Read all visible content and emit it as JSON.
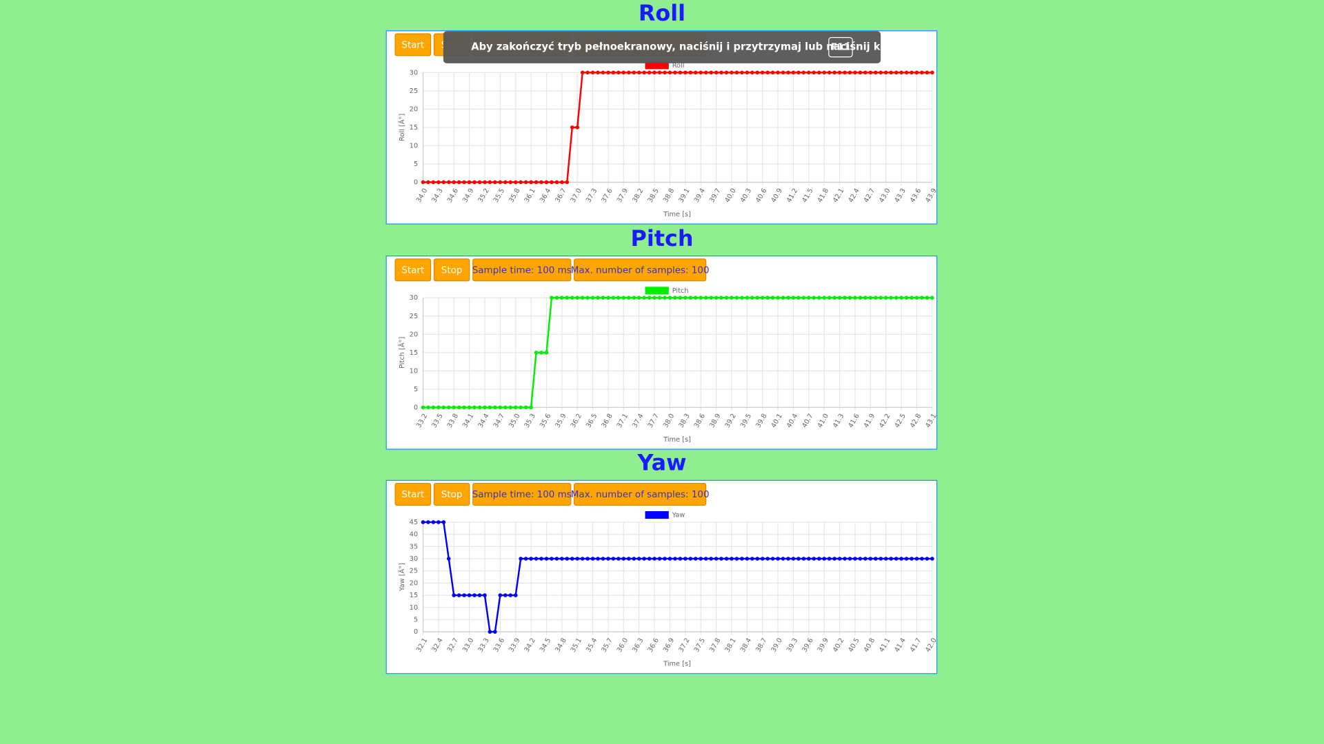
{
  "overlay": {
    "message": "Aby zakończyć tryb pełnoekranowy, naciśnij i przytrzymaj lub naciśnij klawisz",
    "key": "F11"
  },
  "panels": [
    {
      "buttons": [
        "Start",
        "Stop"
      ]
    },
    {
      "buttons": [
        "Start",
        "Stop",
        "Sample time: 100 ms",
        "Max. number of samples: 100"
      ]
    },
    {
      "buttons": [
        "Start",
        "Stop",
        "Sample time: 100 ms",
        "Max. number of samples: 100"
      ]
    }
  ],
  "chart_data": [
    {
      "type": "line",
      "title": "Roll",
      "y_label": "Roll [Â°]",
      "x_label": "Time [s]",
      "ylim": [
        0,
        30
      ],
      "yticks": [
        0,
        5,
        10,
        15,
        20,
        25,
        30
      ],
      "grid": true,
      "categories": [
        "34.0",
        null,
        null,
        "34.3",
        null,
        null,
        "34.6",
        null,
        null,
        "34.9",
        null,
        null,
        "35.2",
        null,
        null,
        "35.5",
        null,
        null,
        "35.8",
        null,
        null,
        "36.1",
        null,
        null,
        "36.4",
        null,
        null,
        "36.7",
        null,
        null,
        "37.0",
        null,
        null,
        "37.3",
        null,
        null,
        "37.6",
        null,
        null,
        "37.9",
        null,
        null,
        "38.2",
        null,
        null,
        "38.5",
        null,
        null,
        "38.8",
        null,
        null,
        "39.1",
        null,
        null,
        "39.4",
        null,
        null,
        "39.7",
        null,
        null,
        "40.0",
        null,
        null,
        "40.3",
        null,
        null,
        "40.6",
        null,
        null,
        "40.9",
        null,
        null,
        "41.2",
        null,
        null,
        "41.5",
        null,
        null,
        "41.8",
        null,
        null,
        "42.1",
        null,
        null,
        "42.4",
        null,
        null,
        "42.7",
        null,
        null,
        "43.0",
        null,
        null,
        "43.3",
        null,
        null,
        "43.6",
        null,
        null,
        "43.9"
      ],
      "series": [
        {
          "name": "Roll",
          "color": "#ff0000",
          "values": [
            0,
            0,
            0,
            0,
            0,
            0,
            0,
            0,
            0,
            0,
            0,
            0,
            0,
            0,
            0,
            0,
            0,
            0,
            0,
            0,
            0,
            0,
            0,
            0,
            0,
            0,
            0,
            0,
            0,
            15,
            15,
            30,
            30,
            30,
            30,
            30,
            30,
            30,
            30,
            30,
            30,
            30,
            30,
            30,
            30,
            30,
            30,
            30,
            30,
            30,
            30,
            30,
            30,
            30,
            30,
            30,
            30,
            30,
            30,
            30,
            30,
            30,
            30,
            30,
            30,
            30,
            30,
            30,
            30,
            30,
            30,
            30,
            30,
            30,
            30,
            30,
            30,
            30,
            30,
            30,
            30,
            30,
            30,
            30,
            30,
            30,
            30,
            30,
            30,
            30,
            30,
            30,
            30,
            30,
            30,
            30,
            30,
            30,
            30,
            30
          ]
        }
      ]
    },
    {
      "type": "line",
      "title": "Pitch",
      "y_label": "Pitch [Â°]",
      "x_label": "Time [s]",
      "ylim": [
        0,
        30
      ],
      "yticks": [
        0,
        5,
        10,
        15,
        20,
        25,
        30
      ],
      "grid": true,
      "categories": [
        "33.2",
        null,
        null,
        "33.5",
        null,
        null,
        "33.8",
        null,
        null,
        "34.1",
        null,
        null,
        "34.4",
        null,
        null,
        "34.7",
        null,
        null,
        "35.0",
        null,
        null,
        "35.3",
        null,
        null,
        "35.6",
        null,
        null,
        "35.9",
        null,
        null,
        "36.2",
        null,
        null,
        "36.5",
        null,
        null,
        "36.8",
        null,
        null,
        "37.1",
        null,
        null,
        "37.4",
        null,
        null,
        "37.7",
        null,
        null,
        "38.0",
        null,
        null,
        "38.3",
        null,
        null,
        "38.6",
        null,
        null,
        "38.9",
        null,
        null,
        "39.2",
        null,
        null,
        "39.5",
        null,
        null,
        "39.8",
        null,
        null,
        "40.1",
        null,
        null,
        "40.4",
        null,
        null,
        "40.7",
        null,
        null,
        "41.0",
        null,
        null,
        "41.3",
        null,
        null,
        "41.6",
        null,
        null,
        "41.9",
        null,
        null,
        "42.2",
        null,
        null,
        "42.5",
        null,
        null,
        "42.8",
        null,
        null,
        "43.1"
      ],
      "series": [
        {
          "name": "Pitch",
          "color": "#00ee00",
          "values": [
            0,
            0,
            0,
            0,
            0,
            0,
            0,
            0,
            0,
            0,
            0,
            0,
            0,
            0,
            0,
            0,
            0,
            0,
            0,
            0,
            0,
            0,
            15,
            15,
            15,
            30,
            30,
            30,
            30,
            30,
            30,
            30,
            30,
            30,
            30,
            30,
            30,
            30,
            30,
            30,
            30,
            30,
            30,
            30,
            30,
            30,
            30,
            30,
            30,
            30,
            30,
            30,
            30,
            30,
            30,
            30,
            30,
            30,
            30,
            30,
            30,
            30,
            30,
            30,
            30,
            30,
            30,
            30,
            30,
            30,
            30,
            30,
            30,
            30,
            30,
            30,
            30,
            30,
            30,
            30,
            30,
            30,
            30,
            30,
            30,
            30,
            30,
            30,
            30,
            30,
            30,
            30,
            30,
            30,
            30,
            30,
            30,
            30,
            30,
            30
          ]
        }
      ]
    },
    {
      "type": "line",
      "title": "Yaw",
      "y_label": "Yaw [Â°]",
      "x_label": "Time [s]",
      "ylim": [
        0,
        45
      ],
      "yticks": [
        0,
        5,
        10,
        15,
        20,
        25,
        30,
        35,
        40,
        45
      ],
      "grid": true,
      "categories": [
        "32.1",
        null,
        null,
        "32.4",
        null,
        null,
        "32.7",
        null,
        null,
        "33.0",
        null,
        null,
        "33.3",
        null,
        null,
        "33.6",
        null,
        null,
        "33.9",
        null,
        null,
        "34.2",
        null,
        null,
        "34.5",
        null,
        null,
        "34.8",
        null,
        null,
        "35.1",
        null,
        null,
        "35.4",
        null,
        null,
        "35.7",
        null,
        null,
        "36.0",
        null,
        null,
        "36.3",
        null,
        null,
        "36.6",
        null,
        null,
        "36.9",
        null,
        null,
        "37.2",
        null,
        null,
        "37.5",
        null,
        null,
        "37.8",
        null,
        null,
        "38.1",
        null,
        null,
        "38.4",
        null,
        null,
        "38.7",
        null,
        null,
        "39.0",
        null,
        null,
        "39.3",
        null,
        null,
        "39.6",
        null,
        null,
        "39.9",
        null,
        null,
        "40.2",
        null,
        null,
        "40.5",
        null,
        null,
        "40.8",
        null,
        null,
        "41.1",
        null,
        null,
        "41.4",
        null,
        null,
        "41.7",
        null,
        null,
        "42.0"
      ],
      "series": [
        {
          "name": "Yaw",
          "color": "#0000ff",
          "values": [
            45,
            45,
            45,
            45,
            45,
            30,
            15,
            15,
            15,
            15,
            15,
            15,
            15,
            0,
            0,
            15,
            15,
            15,
            15,
            30,
            30,
            30,
            30,
            30,
            30,
            30,
            30,
            30,
            30,
            30,
            30,
            30,
            30,
            30,
            30,
            30,
            30,
            30,
            30,
            30,
            30,
            30,
            30,
            30,
            30,
            30,
            30,
            30,
            30,
            30,
            30,
            30,
            30,
            30,
            30,
            30,
            30,
            30,
            30,
            30,
            30,
            30,
            30,
            30,
            30,
            30,
            30,
            30,
            30,
            30,
            30,
            30,
            30,
            30,
            30,
            30,
            30,
            30,
            30,
            30,
            30,
            30,
            30,
            30,
            30,
            30,
            30,
            30,
            30,
            30,
            30,
            30,
            30,
            30,
            30,
            30,
            30,
            30,
            30,
            30
          ]
        }
      ]
    }
  ]
}
